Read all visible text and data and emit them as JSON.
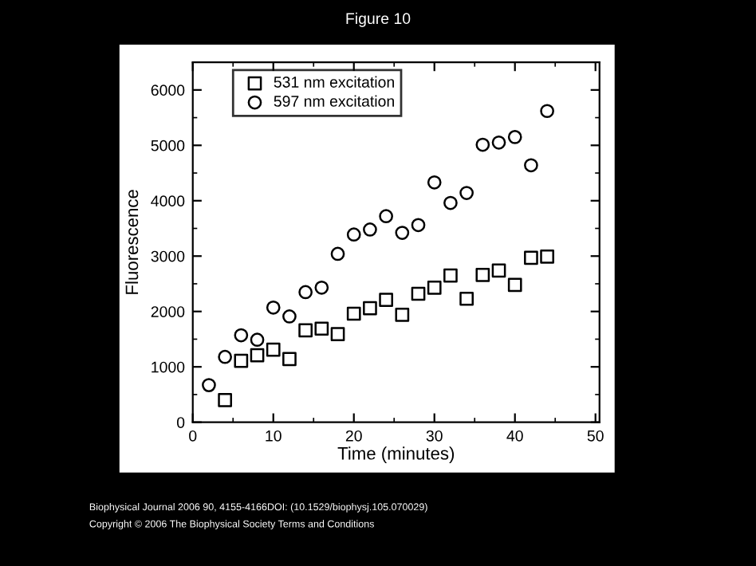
{
  "chart_data": {
    "type": "scatter",
    "title": "Figure 10",
    "xlabel": "Time (minutes)",
    "ylabel": "Fluorescence",
    "xlim": [
      0,
      50.5
    ],
    "ylim": [
      0,
      6500
    ],
    "xticks": [
      0,
      {
        "value": 5,
        "label": null
      },
      10,
      {
        "value": 15,
        "label": null
      },
      20,
      {
        "value": 25,
        "label": null
      },
      30,
      {
        "value": 35,
        "label": null
      },
      40,
      {
        "value": 45,
        "label": null
      },
      50
    ],
    "yticks": [
      0,
      {
        "value": 500,
        "label": null
      },
      1000,
      {
        "value": 1500,
        "label": null
      },
      2000,
      {
        "value": 2500,
        "label": null
      },
      3000,
      {
        "value": 3500,
        "label": null
      },
      4000,
      {
        "value": 4500,
        "label": null
      },
      5000,
      {
        "value": 5500,
        "label": null
      },
      6000
    ],
    "legend": "top left",
    "grid": false,
    "series": [
      {
        "name": "531 nm excitation",
        "color": "#000000",
        "marker": "square",
        "x": [
          4,
          6,
          8,
          10,
          12,
          14,
          16,
          18,
          20,
          22,
          24,
          26,
          28,
          30,
          32,
          34,
          36,
          38,
          40,
          42,
          44
        ],
        "values": [
          400,
          1110,
          1210,
          1310,
          1140,
          1660,
          1690,
          1590,
          1960,
          2060,
          2210,
          1940,
          2320,
          2430,
          2650,
          2230,
          2660,
          2740,
          2480,
          2970,
          2990
        ]
      },
      {
        "name": "597 nm excitation",
        "color": "#000000",
        "marker": "circle",
        "x": [
          2,
          4,
          6,
          8,
          10,
          12,
          14,
          16,
          18,
          20,
          22,
          24,
          26,
          28,
          30,
          32,
          34,
          36,
          38,
          40,
          42,
          44
        ],
        "values": [
          670,
          1180,
          1570,
          1490,
          2070,
          1910,
          2350,
          2430,
          3040,
          3390,
          3480,
          3720,
          3420,
          3560,
          4330,
          3960,
          4140,
          5010,
          5050,
          5150,
          4640,
          5620
        ]
      }
    ],
    "annotations": [
      "Biophysical Journal 2006 90, 4155-4166DOI: (10.1529/biophysj.105.070029)",
      "Copyright © 2006 The Biophysical Society Terms and Conditions"
    ]
  }
}
